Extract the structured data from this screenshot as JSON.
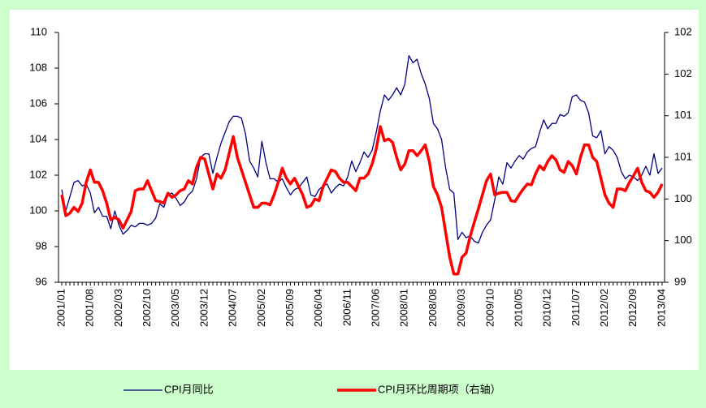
{
  "chart_data": {
    "type": "line",
    "categories": [
      "2001/01",
      null,
      null,
      null,
      null,
      null,
      null,
      "2001/08",
      null,
      null,
      null,
      null,
      null,
      null,
      "2002/03",
      null,
      null,
      null,
      null,
      null,
      null,
      "2002/10",
      null,
      null,
      null,
      null,
      null,
      null,
      "2003/05",
      null,
      null,
      null,
      null,
      null,
      null,
      "2003/12",
      null,
      null,
      null,
      null,
      null,
      null,
      "2004/07",
      null,
      null,
      null,
      null,
      null,
      null,
      "2005/02",
      null,
      null,
      null,
      null,
      null,
      null,
      "2005/09",
      null,
      null,
      null,
      null,
      null,
      null,
      "2006/04",
      null,
      null,
      null,
      null,
      null,
      null,
      "2006/11",
      null,
      null,
      null,
      null,
      null,
      null,
      "2007/06",
      null,
      null,
      null,
      null,
      null,
      null,
      "2008/01",
      null,
      null,
      null,
      null,
      null,
      null,
      "2008/08",
      null,
      null,
      null,
      null,
      null,
      null,
      "2009/03",
      null,
      null,
      null,
      null,
      null,
      null,
      "2009/10",
      null,
      null,
      null,
      null,
      null,
      null,
      "2010/05",
      null,
      null,
      null,
      null,
      null,
      null,
      "2010/12",
      null,
      null,
      null,
      null,
      null,
      null,
      "2011/07",
      null,
      null,
      null,
      null,
      null,
      null,
      "2012/02",
      null,
      null,
      null,
      null,
      null,
      null,
      "2012/09",
      null,
      null,
      null,
      null,
      null,
      null,
      "2013/04"
    ],
    "series": [
      {
        "name": "CPI月同比",
        "color": "#000080",
        "axis": "y",
        "values": [
          101.2,
          100.0,
          100.8,
          101.6,
          101.7,
          101.4,
          101.5,
          101.0,
          99.9,
          100.2,
          99.7,
          99.7,
          99.0,
          100.0,
          99.2,
          98.7,
          98.9,
          99.2,
          99.1,
          99.3,
          99.3,
          99.2,
          99.3,
          99.6,
          100.4,
          100.2,
          100.9,
          101.0,
          100.7,
          100.3,
          100.5,
          100.9,
          101.1,
          101.8,
          103.0,
          103.2,
          103.2,
          102.1,
          103.0,
          103.8,
          104.4,
          105.0,
          105.3,
          105.3,
          105.2,
          104.3,
          102.8,
          102.4,
          101.9,
          103.9,
          102.7,
          101.8,
          101.8,
          101.6,
          101.8,
          101.3,
          100.9,
          101.2,
          101.3,
          101.6,
          101.9,
          100.9,
          100.8,
          101.2,
          101.4,
          101.5,
          101.0,
          101.3,
          101.5,
          101.4,
          101.9,
          102.8,
          102.2,
          102.7,
          103.3,
          103.0,
          103.4,
          104.4,
          105.6,
          106.5,
          106.2,
          106.5,
          106.9,
          106.5,
          107.1,
          108.7,
          108.3,
          108.5,
          107.7,
          107.1,
          106.3,
          104.9,
          104.6,
          104.0,
          102.4,
          101.2,
          101.0,
          98.4,
          98.8,
          98.5,
          98.6,
          98.3,
          98.2,
          98.8,
          99.2,
          99.5,
          100.6,
          101.9,
          101.5,
          102.7,
          102.4,
          102.8,
          103.1,
          102.9,
          103.3,
          103.5,
          103.6,
          104.4,
          105.1,
          104.6,
          104.9,
          104.9,
          105.4,
          105.3,
          105.5,
          106.4,
          106.5,
          106.2,
          106.1,
          105.5,
          104.2,
          104.1,
          104.5,
          103.2,
          103.6,
          103.4,
          103.0,
          102.2,
          101.8,
          102.0,
          101.9,
          101.7,
          102.0,
          102.5,
          102.0,
          103.2,
          102.1,
          102.4
        ]
      },
      {
        "name": "CPI月环比周期项（右轴）",
        "color": "#ff0000",
        "axis": "y2",
        "values": [
          100.05,
          99.8,
          99.83,
          99.9,
          99.85,
          99.95,
          100.2,
          100.35,
          100.2,
          100.2,
          100.1,
          99.95,
          99.75,
          99.78,
          99.75,
          99.65,
          99.75,
          99.85,
          100.1,
          100.12,
          100.12,
          100.22,
          100.1,
          99.98,
          99.97,
          99.95,
          100.07,
          100.02,
          100.05,
          100.1,
          100.12,
          100.22,
          100.18,
          100.38,
          100.5,
          100.48,
          100.3,
          100.12,
          100.3,
          100.25,
          100.35,
          100.55,
          100.75,
          100.5,
          100.35,
          100.2,
          100.05,
          99.9,
          99.9,
          99.95,
          99.95,
          99.93,
          100.05,
          100.2,
          100.37,
          100.25,
          100.18,
          100.25,
          100.15,
          100.05,
          99.9,
          99.92,
          100.0,
          99.98,
          100.15,
          100.25,
          100.35,
          100.33,
          100.25,
          100.2,
          100.2,
          100.15,
          100.1,
          100.25,
          100.25,
          100.3,
          100.42,
          100.6,
          100.87,
          100.7,
          100.72,
          100.68,
          100.5,
          100.35,
          100.42,
          100.58,
          100.58,
          100.52,
          100.58,
          100.65,
          100.45,
          100.15,
          100.05,
          99.9,
          99.6,
          99.3,
          99.1,
          99.1,
          99.3,
          99.35,
          99.55,
          99.72,
          99.88,
          100.05,
          100.22,
          100.3,
          100.05,
          100.07,
          100.08,
          100.08,
          99.98,
          99.97,
          100.05,
          100.12,
          100.18,
          100.17,
          100.3,
          100.4,
          100.35,
          100.45,
          100.52,
          100.47,
          100.35,
          100.32,
          100.45,
          100.4,
          100.3,
          100.5,
          100.65,
          100.65,
          100.5,
          100.45,
          100.25,
          100.05,
          99.95,
          99.9,
          100.12,
          100.12,
          100.1,
          100.2,
          100.28,
          100.37,
          100.2,
          100.1,
          100.08,
          100.02,
          100.08,
          100.18
        ]
      }
    ],
    "ylim": [
      96,
      110
    ],
    "yticks": [
      96,
      98,
      100,
      102,
      104,
      106,
      108,
      110
    ],
    "y2lim": [
      99,
      102
    ],
    "y2ticks": [
      {
        "value": 99,
        "label": "99"
      },
      {
        "value": 99.5,
        "label": "100"
      },
      {
        "value": 100,
        "label": "100"
      },
      {
        "value": 100.5,
        "label": "101"
      },
      {
        "value": 101,
        "label": "101"
      },
      {
        "value": 101.5,
        "label": "102"
      },
      {
        "value": 102,
        "label": "102"
      }
    ],
    "legend": "bottom",
    "grid": false
  }
}
